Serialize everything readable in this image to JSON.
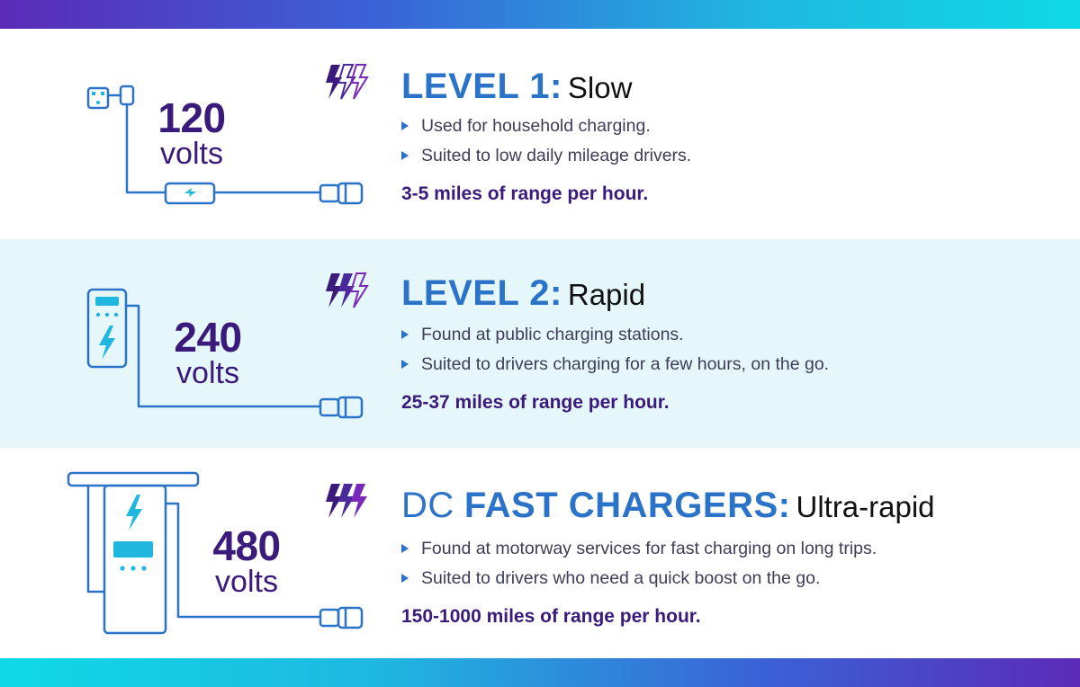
{
  "colors": {
    "accent_blue": "#2a73c8",
    "deep_purple": "#3a1a7a",
    "cyan": "#17c2d6",
    "band_light": "#e6f7fb"
  },
  "levels": [
    {
      "volts_number": "120",
      "volts_unit": "volts",
      "icon": "lightning-bolts-icon",
      "title_prefix": "LEVEL 1:",
      "title_suffix": "Slow",
      "bullets": [
        "Used for household charging.",
        "Suited to low daily mileage drivers."
      ],
      "range": "3-5 miles of range per hour."
    },
    {
      "volts_number": "240",
      "volts_unit": "volts",
      "icon": "lightning-bolts-icon",
      "title_prefix": "LEVEL 2:",
      "title_suffix": "Rapid",
      "bullets": [
        "Found at public charging stations.",
        "Suited to drivers charging for a few hours, on the go."
      ],
      "range": "25-37 miles of range per hour."
    },
    {
      "volts_number": "480",
      "volts_unit": "volts",
      "icon": "lightning-bolts-icon",
      "title_prefix": "DC",
      "title_bold": "FAST CHARGERS:",
      "title_suffix": "Ultra-rapid",
      "bullets": [
        "Found at motorway services for fast charging on long trips.",
        "Suited to drivers who need a quick boost on the go."
      ],
      "range": "150-1000 miles of range per hour."
    }
  ]
}
